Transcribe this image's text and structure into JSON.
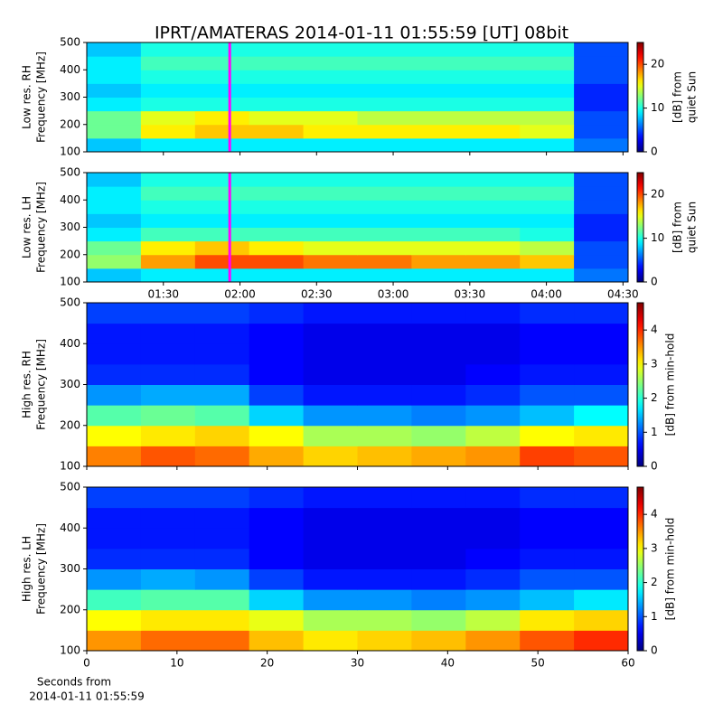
{
  "chart_data": [
    {
      "type": "heatmap",
      "title": "IPRT/AMATERAS 2014-01-11 01:55:59 [UT]   08bit",
      "ylabel": [
        "Low res. RH",
        "Frequency [MHz]"
      ],
      "ylim": [
        100,
        500
      ],
      "yticks": [
        100,
        200,
        300,
        400,
        500
      ],
      "xlim": [
        60,
        272
      ],
      "marker": 115.98,
      "marker_color": "#ff00ff",
      "colormap": "jet",
      "colorbar": {
        "label": [
          "[dB] from",
          "quiet Sun"
        ],
        "lim": [
          0,
          25
        ],
        "ticks": [
          0,
          10,
          20
        ]
      },
      "z": [
        [
          8,
          9,
          9,
          9,
          9,
          9,
          9,
          9,
          9,
          6
        ],
        [
          12,
          16,
          17,
          17,
          16,
          16,
          16,
          16,
          15,
          5
        ],
        [
          12,
          15,
          16,
          15,
          15,
          14,
          14,
          14,
          14,
          5
        ],
        [
          9,
          10,
          10,
          10,
          10,
          10,
          10,
          10,
          10,
          4
        ],
        [
          8,
          9,
          9,
          9,
          9,
          9,
          9,
          9,
          9,
          4
        ],
        [
          9,
          10,
          10,
          10,
          10,
          10,
          10,
          10,
          10,
          5
        ],
        [
          9,
          11,
          11,
          11,
          11,
          11,
          11,
          11,
          11,
          5
        ],
        [
          8,
          10,
          10,
          10,
          10,
          10,
          10,
          10,
          10,
          5
        ]
      ]
    },
    {
      "type": "heatmap",
      "ylabel": [
        "Low res. LH",
        "Frequency [MHz]"
      ],
      "ylim": [
        100,
        500
      ],
      "yticks": [
        100,
        200,
        300,
        400,
        500
      ],
      "xlim": [
        60,
        272
      ],
      "xticks": [
        {
          "value": 90,
          "label": "01:30"
        },
        {
          "value": 120,
          "label": "02:00"
        },
        {
          "value": 150,
          "label": "02:30"
        },
        {
          "value": 180,
          "label": "03:00"
        },
        {
          "value": 210,
          "label": "03:30"
        },
        {
          "value": 240,
          "label": "04:00"
        },
        {
          "value": 270,
          "label": "04:30"
        }
      ],
      "marker": 115.98,
      "marker_color": "#ff00ff",
      "colormap": "jet",
      "colorbar": {
        "label": [
          "[dB] from",
          "quiet Sun"
        ],
        "lim": [
          0,
          25
        ],
        "ticks": [
          0,
          10,
          20
        ]
      },
      "z": [
        [
          8,
          9,
          9,
          9,
          9,
          9,
          9,
          9,
          9,
          6
        ],
        [
          13,
          18,
          20,
          20,
          19,
          19,
          18,
          18,
          17,
          5
        ],
        [
          12,
          16,
          17,
          16,
          15,
          15,
          15,
          15,
          14,
          5
        ],
        [
          9,
          11,
          11,
          11,
          11,
          11,
          11,
          11,
          10,
          4
        ],
        [
          8,
          9,
          9,
          9,
          9,
          9,
          9,
          9,
          9,
          4
        ],
        [
          9,
          10,
          10,
          10,
          10,
          10,
          10,
          10,
          10,
          5
        ],
        [
          9,
          11,
          11,
          11,
          11,
          11,
          11,
          11,
          11,
          5
        ],
        [
          8,
          10,
          10,
          10,
          10,
          10,
          10,
          10,
          10,
          5
        ]
      ]
    },
    {
      "type": "heatmap",
      "ylabel": [
        "High res. RH",
        "Frequency [MHz]"
      ],
      "ylim": [
        100,
        500
      ],
      "yticks": [
        100,
        200,
        300,
        400,
        500
      ],
      "xlim": [
        0,
        60
      ],
      "colormap": "jet",
      "colorbar": {
        "label": [
          "[dB] from min-hold"
        ],
        "lim": [
          0,
          4.8
        ],
        "ticks": [
          0,
          1,
          2,
          3,
          4
        ]
      },
      "z": [
        [
          3.6,
          3.8,
          3.7,
          3.4,
          3.2,
          3.3,
          3.4,
          3.5,
          3.9,
          3.8
        ],
        [
          3.0,
          3.1,
          3.2,
          3.0,
          2.6,
          2.6,
          2.5,
          2.7,
          3.0,
          3.1
        ],
        [
          2.2,
          2.3,
          2.2,
          1.6,
          1.3,
          1.3,
          1.2,
          1.3,
          1.5,
          1.8
        ],
        [
          1.3,
          1.4,
          1.4,
          0.9,
          0.7,
          0.7,
          0.7,
          0.8,
          1.0,
          1.0
        ],
        [
          0.8,
          0.8,
          0.8,
          0.6,
          0.5,
          0.5,
          0.5,
          0.6,
          0.7,
          0.7
        ],
        [
          0.7,
          0.7,
          0.7,
          0.6,
          0.5,
          0.5,
          0.5,
          0.5,
          0.6,
          0.6
        ],
        [
          0.7,
          0.7,
          0.7,
          0.6,
          0.5,
          0.5,
          0.5,
          0.5,
          0.6,
          0.6
        ],
        [
          0.9,
          0.9,
          0.9,
          0.8,
          0.7,
          0.7,
          0.7,
          0.7,
          0.8,
          0.8
        ]
      ]
    },
    {
      "type": "heatmap",
      "ylabel": [
        "High res. LH",
        "Frequency [MHz]"
      ],
      "ylim": [
        100,
        500
      ],
      "yticks": [
        100,
        200,
        300,
        400,
        500
      ],
      "xlim": [
        0,
        60
      ],
      "xticks": [
        0,
        10,
        20,
        30,
        40,
        50,
        60
      ],
      "xlabel": [
        "Seconds from",
        "2014-01-11 01:55:59"
      ],
      "colormap": "jet",
      "colorbar": {
        "label": [
          "[dB] from min-hold"
        ],
        "lim": [
          0,
          4.8
        ],
        "ticks": [
          0,
          1,
          2,
          3,
          4
        ]
      },
      "z": [
        [
          3.5,
          3.7,
          3.7,
          3.3,
          3.1,
          3.2,
          3.3,
          3.5,
          3.8,
          4.0
        ],
        [
          3.0,
          3.1,
          3.1,
          2.9,
          2.6,
          2.6,
          2.5,
          2.7,
          3.1,
          3.2
        ],
        [
          2.1,
          2.2,
          2.2,
          1.6,
          1.3,
          1.3,
          1.2,
          1.3,
          1.5,
          1.7
        ],
        [
          1.3,
          1.4,
          1.3,
          0.9,
          0.7,
          0.7,
          0.7,
          0.8,
          1.0,
          1.0
        ],
        [
          0.8,
          0.8,
          0.8,
          0.6,
          0.5,
          0.5,
          0.5,
          0.6,
          0.7,
          0.7
        ],
        [
          0.7,
          0.7,
          0.7,
          0.6,
          0.5,
          0.5,
          0.5,
          0.5,
          0.6,
          0.6
        ],
        [
          0.7,
          0.7,
          0.7,
          0.6,
          0.5,
          0.5,
          0.5,
          0.5,
          0.6,
          0.6
        ],
        [
          0.9,
          0.9,
          0.9,
          0.8,
          0.7,
          0.7,
          0.7,
          0.7,
          0.8,
          0.8
        ]
      ]
    }
  ]
}
